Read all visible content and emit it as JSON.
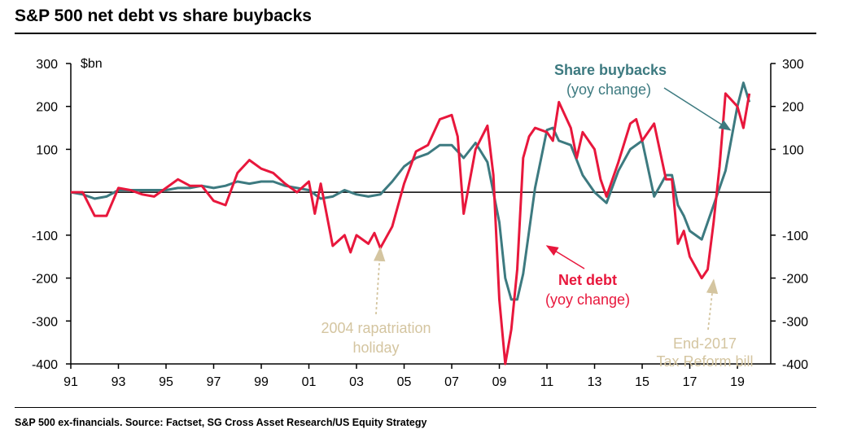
{
  "title": "S&P 500 net debt vs share buybacks",
  "source": "S&P 500 ex-financials. Source: Factset, SG Cross Asset Research/US Equity Strategy",
  "chart_data": {
    "type": "line",
    "title": "S&P 500 net debt vs share buybacks",
    "unit_label": "$bn",
    "ylim": [
      -400,
      300
    ],
    "xlim": [
      1991,
      2020.4
    ],
    "yticks": [
      300,
      200,
      100,
      -100,
      -200,
      -300,
      -400
    ],
    "ytick_labels": [
      "300",
      "200",
      "100",
      "-100",
      "-200",
      "-300",
      "-400"
    ],
    "xticks": [
      1991,
      1993,
      1995,
      1997,
      1999,
      2001,
      2003,
      2005,
      2007,
      2009,
      2011,
      2013,
      2015,
      2017,
      2019
    ],
    "xtick_labels": [
      "91",
      "93",
      "95",
      "97",
      "99",
      "01",
      "03",
      "05",
      "07",
      "09",
      "11",
      "13",
      "15",
      "17",
      "19"
    ],
    "grid": false,
    "colors": {
      "buybacks": "#3d7a80",
      "net_debt": "#e8173c",
      "annotation": "#d4c5a0",
      "axis": "#000000"
    },
    "series": [
      {
        "name": "Share buybacks",
        "x": [
          1991.0,
          1991.5,
          1992.0,
          1992.5,
          1993.0,
          1993.5,
          1994.0,
          1994.5,
          1995.0,
          1995.5,
          1996.0,
          1996.5,
          1997.0,
          1997.5,
          1998.0,
          1998.5,
          1999.0,
          1999.5,
          2000.0,
          2000.5,
          2001.0,
          2001.5,
          2002.0,
          2002.5,
          2003.0,
          2003.5,
          2004.0,
          2004.5,
          2005.0,
          2005.5,
          2006.0,
          2006.5,
          2007.0,
          2007.5,
          2008.0,
          2008.5,
          2009.0,
          2009.25,
          2009.5,
          2009.75,
          2010.0,
          2010.5,
          2011.0,
          2011.25,
          2011.5,
          2012.0,
          2012.5,
          2013.0,
          2013.5,
          2014.0,
          2014.5,
          2015.0,
          2015.5,
          2016.0,
          2016.25,
          2016.5,
          2016.75,
          2017.0,
          2017.5,
          2018.0,
          2018.5,
          2019.0,
          2019.25,
          2019.5
        ],
        "values": [
          0,
          -5,
          -15,
          -10,
          5,
          5,
          5,
          5,
          5,
          10,
          10,
          15,
          10,
          15,
          25,
          20,
          25,
          25,
          15,
          10,
          5,
          -15,
          -10,
          5,
          -5,
          -10,
          -5,
          25,
          60,
          80,
          90,
          110,
          110,
          80,
          115,
          70,
          -70,
          -200,
          -250,
          -250,
          -190,
          10,
          145,
          150,
          120,
          110,
          40,
          0,
          -25,
          50,
          100,
          120,
          -10,
          40,
          40,
          -30,
          -55,
          -90,
          -110,
          -30,
          50,
          200,
          255,
          210
        ]
      },
      {
        "name": "Net debt",
        "x": [
          1991.0,
          1991.5,
          1992.0,
          1992.5,
          1993.0,
          1993.5,
          1994.0,
          1994.5,
          1995.0,
          1995.5,
          1996.0,
          1996.5,
          1997.0,
          1997.5,
          1998.0,
          1998.5,
          1999.0,
          1999.5,
          2000.0,
          2000.5,
          2001.0,
          2001.25,
          2001.5,
          2002.0,
          2002.5,
          2002.75,
          2003.0,
          2003.5,
          2003.75,
          2004.0,
          2004.5,
          2005.0,
          2005.5,
          2006.0,
          2006.5,
          2007.0,
          2007.25,
          2007.5,
          2008.0,
          2008.5,
          2008.75,
          2009.0,
          2009.25,
          2009.5,
          2009.75,
          2010.0,
          2010.25,
          2010.5,
          2011.0,
          2011.25,
          2011.5,
          2012.0,
          2012.25,
          2012.5,
          2013.0,
          2013.25,
          2013.5,
          2014.0,
          2014.5,
          2014.75,
          2015.0,
          2015.5,
          2016.0,
          2016.25,
          2016.5,
          2016.75,
          2017.0,
          2017.5,
          2017.75,
          2018.0,
          2018.25,
          2018.5,
          2019.0,
          2019.25,
          2019.5
        ],
        "values": [
          0,
          0,
          -55,
          -55,
          10,
          5,
          -5,
          -10,
          10,
          30,
          15,
          15,
          -20,
          -30,
          45,
          75,
          55,
          45,
          20,
          0,
          25,
          -50,
          20,
          -125,
          -100,
          -140,
          -100,
          -120,
          -95,
          -130,
          -80,
          20,
          95,
          110,
          170,
          180,
          130,
          -50,
          100,
          155,
          40,
          -250,
          -400,
          -320,
          -180,
          80,
          130,
          150,
          140,
          120,
          210,
          150,
          80,
          140,
          100,
          30,
          -10,
          70,
          160,
          170,
          120,
          160,
          30,
          30,
          -120,
          -90,
          -150,
          -200,
          -180,
          -70,
          60,
          230,
          200,
          150,
          230
        ]
      }
    ],
    "annotations": [
      {
        "id": "buybacks",
        "text": "Share buybacks",
        "subtext": "(yoy change)",
        "arrow_to": [
          2018.7,
          145
        ]
      },
      {
        "id": "netdebt",
        "text": "Net debt",
        "subtext": "(yoy change)",
        "arrow_to": [
          2011.0,
          -125
        ]
      },
      {
        "id": "rep",
        "text": "2004 rapatriation",
        "subtext": "holiday",
        "arrow_to": [
          2004.0,
          -130
        ]
      },
      {
        "id": "tax",
        "text": "End-2017",
        "subtext": "Tax Reform bill",
        "arrow_to": [
          2018.0,
          -205
        ]
      }
    ]
  }
}
